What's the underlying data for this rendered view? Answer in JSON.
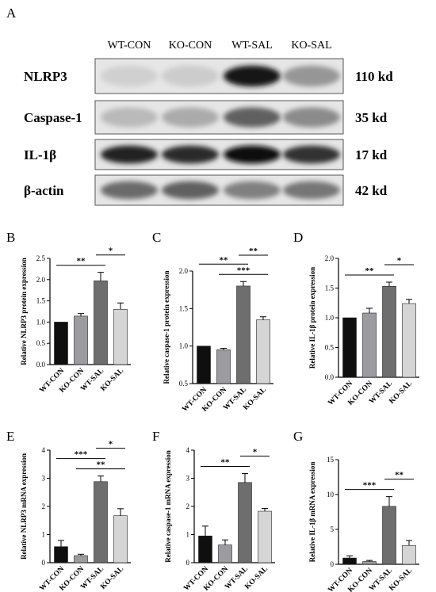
{
  "figure": {
    "blot": {
      "panel_label": "A",
      "lanes": [
        "WT-CON",
        "KO-CON",
        "WT-SAL",
        "KO-SAL"
      ],
      "rows": [
        {
          "protein": "NLRP3",
          "size": "110 kd",
          "intensity": [
            0.08,
            0.1,
            0.95,
            0.35
          ]
        },
        {
          "protein": "Caspase-1",
          "size": "35 kd",
          "intensity": [
            0.18,
            0.25,
            0.6,
            0.4
          ]
        },
        {
          "protein": "IL-1β",
          "size": "17 kd",
          "intensity": [
            0.9,
            0.85,
            0.98,
            0.82
          ]
        },
        {
          "protein": "β-actin",
          "size": "42 kd",
          "intensity": [
            0.55,
            0.6,
            0.45,
            0.5
          ]
        }
      ]
    }
  },
  "chart_data": [
    {
      "panel": "B",
      "type": "bar",
      "categories": [
        "WT-CON",
        "KO-CON",
        "WT-SAL",
        "KO-SAL"
      ],
      "values": [
        1.0,
        1.14,
        1.97,
        1.3
      ],
      "errors": [
        0,
        0.06,
        0.2,
        0.15
      ],
      "ylabel": "Relative NLRP3 protein expression",
      "ylim": [
        0,
        2.5
      ],
      "ticks": [
        "0.0",
        "0.5",
        "1.0",
        "1.5",
        "2.0",
        "2.5"
      ],
      "sig": [
        {
          "from": 0,
          "to": 2,
          "label": "**"
        },
        {
          "from": 2,
          "to": 3,
          "label": "*"
        }
      ]
    },
    {
      "panel": "C",
      "type": "bar",
      "categories": [
        "WT-CON",
        "KO-CON",
        "WT-SAL",
        "KO-SAL"
      ],
      "values": [
        1.0,
        0.95,
        1.8,
        1.35
      ],
      "errors": [
        0,
        0.02,
        0.06,
        0.04
      ],
      "ylabel": "Relative caspase-1 protein expression",
      "ylim": [
        0.5,
        2.0
      ],
      "ticks": [
        "0.5",
        "1.0",
        "1.5",
        "2.0"
      ],
      "sig": [
        {
          "from": 1,
          "to": 3,
          "label": "***"
        },
        {
          "from": 0,
          "to": 2,
          "label": "**"
        },
        {
          "from": 2,
          "to": 3,
          "label": "**"
        }
      ]
    },
    {
      "panel": "D",
      "type": "bar",
      "categories": [
        "WT-CON",
        "KO-CON",
        "WT-SAL",
        "KO-SAL"
      ],
      "values": [
        1.0,
        1.08,
        1.53,
        1.24
      ],
      "errors": [
        0,
        0.08,
        0.07,
        0.07
      ],
      "ylabel": "Relative IL-1β protein expression",
      "ylim": [
        0,
        2.0
      ],
      "ticks": [
        "0.0",
        "0.5",
        "1.0",
        "1.5",
        "2.0"
      ],
      "sig": [
        {
          "from": 0,
          "to": 2,
          "label": "**"
        },
        {
          "from": 2,
          "to": 3,
          "label": "*"
        }
      ]
    },
    {
      "panel": "E",
      "type": "bar",
      "categories": [
        "WT-CON",
        "KO-CON",
        "WT-SAL",
        "KO-SAL"
      ],
      "values": [
        0.57,
        0.25,
        2.88,
        1.67
      ],
      "errors": [
        0.22,
        0.05,
        0.2,
        0.25
      ],
      "ylabel": "Relative NLRP3 mRNA expression",
      "ylim": [
        0,
        4
      ],
      "ticks": [
        "0",
        "1",
        "2",
        "3",
        "4"
      ],
      "sig": [
        {
          "from": 1,
          "to": 3,
          "label": "**"
        },
        {
          "from": 0,
          "to": 2,
          "label": "***"
        },
        {
          "from": 2,
          "to": 3,
          "label": "*"
        }
      ]
    },
    {
      "panel": "F",
      "type": "bar",
      "categories": [
        "WT-CON",
        "KO-CON",
        "WT-SAL",
        "KO-SAL"
      ],
      "values": [
        0.95,
        0.63,
        2.85,
        1.83
      ],
      "errors": [
        0.35,
        0.18,
        0.32,
        0.1
      ],
      "ylabel": "Relative caspase-1 mRNA expression",
      "ylim": [
        0,
        4
      ],
      "ticks": [
        "0",
        "1",
        "2",
        "3",
        "4"
      ],
      "sig": [
        {
          "from": 0,
          "to": 2,
          "label": "**"
        },
        {
          "from": 2,
          "to": 3,
          "label": "*"
        }
      ]
    },
    {
      "panel": "G",
      "type": "bar",
      "categories": [
        "WT-CON",
        "KO-CON",
        "WT-SAL",
        "KO-SAL"
      ],
      "values": [
        0.9,
        0.4,
        8.3,
        2.7
      ],
      "errors": [
        0.3,
        0.15,
        1.4,
        0.7
      ],
      "ylabel": "Relative IL-1β mRNA expression",
      "ylim": [
        0,
        15
      ],
      "ticks": [
        "0",
        "5",
        "10",
        "15"
      ],
      "sig": [
        {
          "from": 0,
          "to": 2,
          "label": "***"
        },
        {
          "from": 2,
          "to": 3,
          "label": "**"
        }
      ]
    }
  ],
  "colors": {
    "bars": [
      "#0f0f0f",
      "#9b9ba0",
      "#6e6e6e",
      "#d5d5d5"
    ],
    "axis": "#000000"
  }
}
